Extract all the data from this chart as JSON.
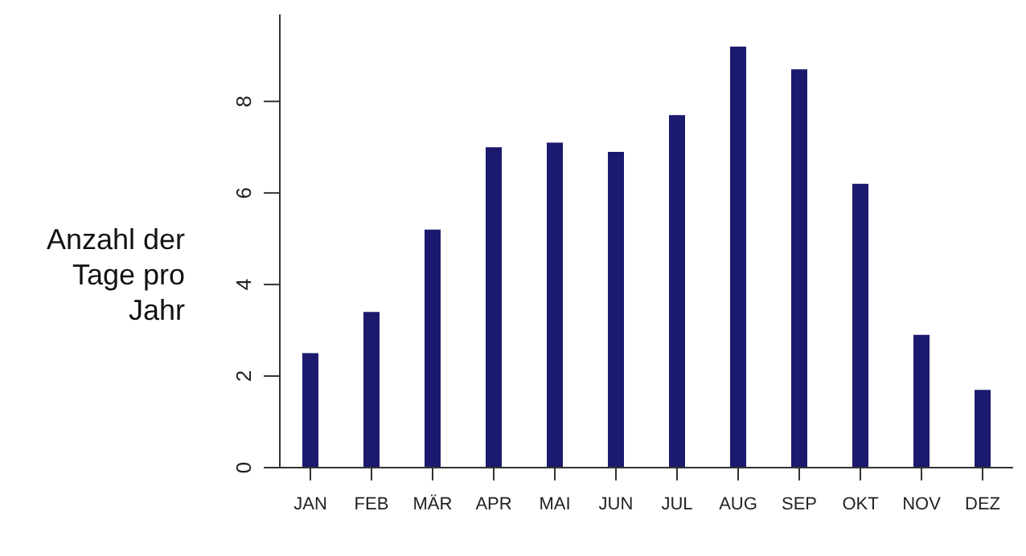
{
  "chart_data": {
    "type": "bar",
    "ylabel": "Anzahl der Tage pro Jahr",
    "categories": [
      "JAN",
      "FEB",
      "MÄR",
      "APR",
      "MAI",
      "JUN",
      "JUL",
      "AUG",
      "SEP",
      "OKT",
      "NOV",
      "DEZ"
    ],
    "values": [
      2.5,
      3.4,
      5.2,
      7.0,
      7.1,
      6.9,
      7.7,
      9.2,
      8.7,
      6.2,
      2.9,
      1.7
    ],
    "color": "#1c1a6e",
    "ylim": [
      0,
      9.9
    ],
    "yticks": [
      0,
      2,
      4,
      6,
      8
    ],
    "grid": false
  }
}
